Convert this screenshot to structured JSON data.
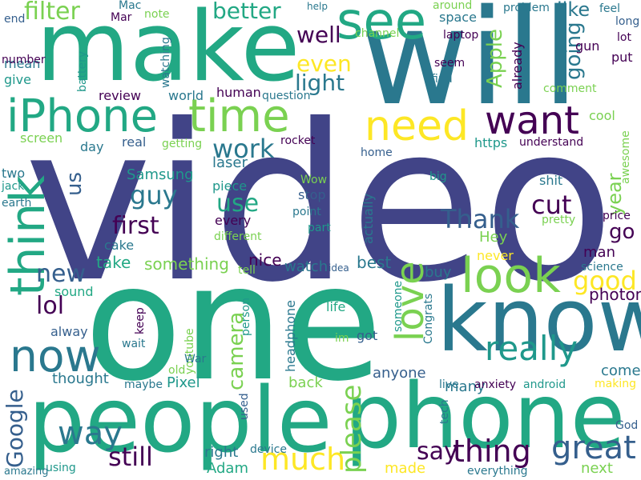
{
  "palette": [
    "#414487",
    "#2a788e",
    "#22a884",
    "#7ad151",
    "#fde725",
    "#440154",
    "#355f8d",
    "#1f988b"
  ],
  "words": [
    {
      "key": "video",
      "text": "video"
    },
    {
      "key": "one",
      "text": "one"
    },
    {
      "key": "will",
      "text": "will"
    },
    {
      "key": "make",
      "text": "make"
    },
    {
      "key": "know",
      "text": "know"
    },
    {
      "key": "people",
      "text": "people"
    },
    {
      "key": "phone",
      "text": "phone"
    },
    {
      "key": "iphone",
      "text": "iPhone"
    },
    {
      "key": "time",
      "text": "time"
    },
    {
      "key": "see",
      "text": "see"
    },
    {
      "key": "look",
      "text": "look"
    },
    {
      "key": "think",
      "text": "think"
    },
    {
      "key": "now",
      "text": "now"
    },
    {
      "key": "need",
      "text": "need"
    },
    {
      "key": "want",
      "text": "want"
    },
    {
      "key": "love",
      "text": "love"
    },
    {
      "key": "much",
      "text": "much"
    },
    {
      "key": "great",
      "text": "great"
    },
    {
      "key": "thing",
      "text": "thing"
    },
    {
      "key": "really",
      "text": "really"
    },
    {
      "key": "way",
      "text": "way"
    },
    {
      "key": "still",
      "text": "still"
    },
    {
      "key": "please",
      "text": "please"
    },
    {
      "key": "google",
      "text": "Google"
    },
    {
      "key": "thank",
      "text": "Thank"
    },
    {
      "key": "guy",
      "text": "guy"
    },
    {
      "key": "work",
      "text": "work"
    },
    {
      "key": "good",
      "text": "good"
    },
    {
      "key": "camera",
      "text": "camera"
    },
    {
      "key": "say",
      "text": "say"
    },
    {
      "key": "better",
      "text": "better"
    },
    {
      "key": "filter",
      "text": "filter"
    },
    {
      "key": "well",
      "text": "well"
    },
    {
      "key": "light",
      "text": "light"
    },
    {
      "key": "even",
      "text": "even"
    },
    {
      "key": "going",
      "text": "going"
    },
    {
      "key": "apple",
      "text": "Apple"
    },
    {
      "key": "first",
      "text": "first"
    },
    {
      "key": "use",
      "text": "use"
    },
    {
      "key": "new",
      "text": "new"
    },
    {
      "key": "lol",
      "text": "lol"
    },
    {
      "key": "cut",
      "text": "cut"
    },
    {
      "key": "go",
      "text": "go"
    },
    {
      "key": "us",
      "text": "us"
    },
    {
      "key": "year",
      "text": "year"
    },
    {
      "key": "like",
      "text": "like"
    },
    {
      "key": "take",
      "text": "take"
    },
    {
      "key": "something",
      "text": "something"
    },
    {
      "key": "nice",
      "text": "nice"
    },
    {
      "key": "best",
      "text": "best"
    },
    {
      "key": "photon",
      "text": "photon"
    },
    {
      "key": "watch",
      "text": "watch"
    },
    {
      "key": "back",
      "text": "back"
    },
    {
      "key": "pixel",
      "text": "Pixel"
    },
    {
      "key": "thought",
      "text": "thought"
    },
    {
      "key": "anyone",
      "text": "anyone"
    },
    {
      "key": "right",
      "text": "right"
    },
    {
      "key": "adam",
      "text": "Adam"
    },
    {
      "key": "made",
      "text": "made"
    },
    {
      "key": "next",
      "text": "next"
    },
    {
      "key": "come",
      "text": "come"
    },
    {
      "key": "many",
      "text": "many"
    },
    {
      "key": "man",
      "text": "man"
    },
    {
      "key": "hey",
      "text": "Hey"
    },
    {
      "key": "buy",
      "text": "buy"
    },
    {
      "key": "samsung",
      "text": "Samsung"
    },
    {
      "key": "laser",
      "text": "laser"
    },
    {
      "key": "piece",
      "text": "piece"
    },
    {
      "key": "every",
      "text": "every"
    },
    {
      "key": "cake",
      "text": "cake"
    },
    {
      "key": "real",
      "text": "real"
    },
    {
      "key": "day",
      "text": "day"
    },
    {
      "key": "screen",
      "text": "screen"
    },
    {
      "key": "review",
      "text": "review"
    },
    {
      "key": "world",
      "text": "world"
    },
    {
      "key": "human",
      "text": "human"
    },
    {
      "key": "give",
      "text": "give"
    },
    {
      "key": "mean",
      "text": "mean"
    },
    {
      "key": "number",
      "text": "number"
    },
    {
      "key": "end",
      "text": "end"
    },
    {
      "key": "mac",
      "text": "Mac"
    },
    {
      "key": "mar",
      "text": "Mar"
    },
    {
      "key": "note",
      "text": "note"
    },
    {
      "key": "watching",
      "text": "watching"
    },
    {
      "key": "battery",
      "text": "battery"
    },
    {
      "key": "help",
      "text": "help"
    },
    {
      "key": "around",
      "text": "around"
    },
    {
      "key": "space",
      "text": "space"
    },
    {
      "key": "channel",
      "text": "channel"
    },
    {
      "key": "laptop",
      "text": "laptop"
    },
    {
      "key": "problem",
      "text": "problem"
    },
    {
      "key": "feel",
      "text": "feel"
    },
    {
      "key": "long",
      "text": "long"
    },
    {
      "key": "lot",
      "text": "lot"
    },
    {
      "key": "put",
      "text": "put"
    },
    {
      "key": "gun",
      "text": "gun"
    },
    {
      "key": "already",
      "text": "already"
    },
    {
      "key": "seem",
      "text": "seem"
    },
    {
      "key": "find",
      "text": "find"
    },
    {
      "key": "comment",
      "text": "comment"
    },
    {
      "key": "question",
      "text": "question"
    },
    {
      "key": "cool",
      "text": "cool"
    },
    {
      "key": "https",
      "text": "https"
    },
    {
      "key": "understand",
      "text": "understand"
    },
    {
      "key": "awesome",
      "text": "awesome"
    },
    {
      "key": "getting",
      "text": "getting"
    },
    {
      "key": "rocket",
      "text": "rocket"
    },
    {
      "key": "home",
      "text": "home"
    },
    {
      "key": "wow",
      "text": "Wow"
    },
    {
      "key": "point",
      "text": "point"
    },
    {
      "key": "part",
      "text": "part"
    },
    {
      "key": "stop",
      "text": "stop"
    },
    {
      "key": "big",
      "text": "big"
    },
    {
      "key": "actually",
      "text": "actually"
    },
    {
      "key": "pretty",
      "text": "pretty"
    },
    {
      "key": "shit",
      "text": "shit"
    },
    {
      "key": "price",
      "text": "price"
    },
    {
      "key": "science",
      "text": "science"
    },
    {
      "key": "never",
      "text": "never"
    },
    {
      "key": "different",
      "text": "different"
    },
    {
      "key": "tell",
      "text": "tell"
    },
    {
      "key": "idea",
      "text": "idea"
    },
    {
      "key": "sound",
      "text": "sound"
    },
    {
      "key": "keep",
      "text": "keep"
    },
    {
      "key": "alway",
      "text": "alway"
    },
    {
      "key": "wait",
      "text": "wait"
    },
    {
      "key": "youtube",
      "text": "youtube"
    },
    {
      "key": "war",
      "text": "War"
    },
    {
      "key": "old",
      "text": "old"
    },
    {
      "key": "maybe",
      "text": "maybe"
    },
    {
      "key": "person",
      "text": "person"
    },
    {
      "key": "headphone",
      "text": "headphone"
    },
    {
      "key": "life",
      "text": "life"
    },
    {
      "key": "im",
      "text": "im"
    },
    {
      "key": "got",
      "text": "got"
    },
    {
      "key": "someone",
      "text": "someone"
    },
    {
      "key": "congrats",
      "text": "Congrats"
    },
    {
      "key": "live",
      "text": "live"
    },
    {
      "key": "anxiety",
      "text": "anxiety"
    },
    {
      "key": "android",
      "text": "android"
    },
    {
      "key": "making",
      "text": "making"
    },
    {
      "key": "tech",
      "text": "tech"
    },
    {
      "key": "god",
      "text": "God"
    },
    {
      "key": "everything",
      "text": "everything"
    },
    {
      "key": "device",
      "text": "device"
    },
    {
      "key": "used",
      "text": "used"
    },
    {
      "key": "using",
      "text": "using"
    },
    {
      "key": "amazing",
      "text": "amazing"
    },
    {
      "key": "two",
      "text": "two"
    },
    {
      "key": "jack",
      "text": "jack"
    },
    {
      "key": "earth",
      "text": "earth"
    }
  ]
}
